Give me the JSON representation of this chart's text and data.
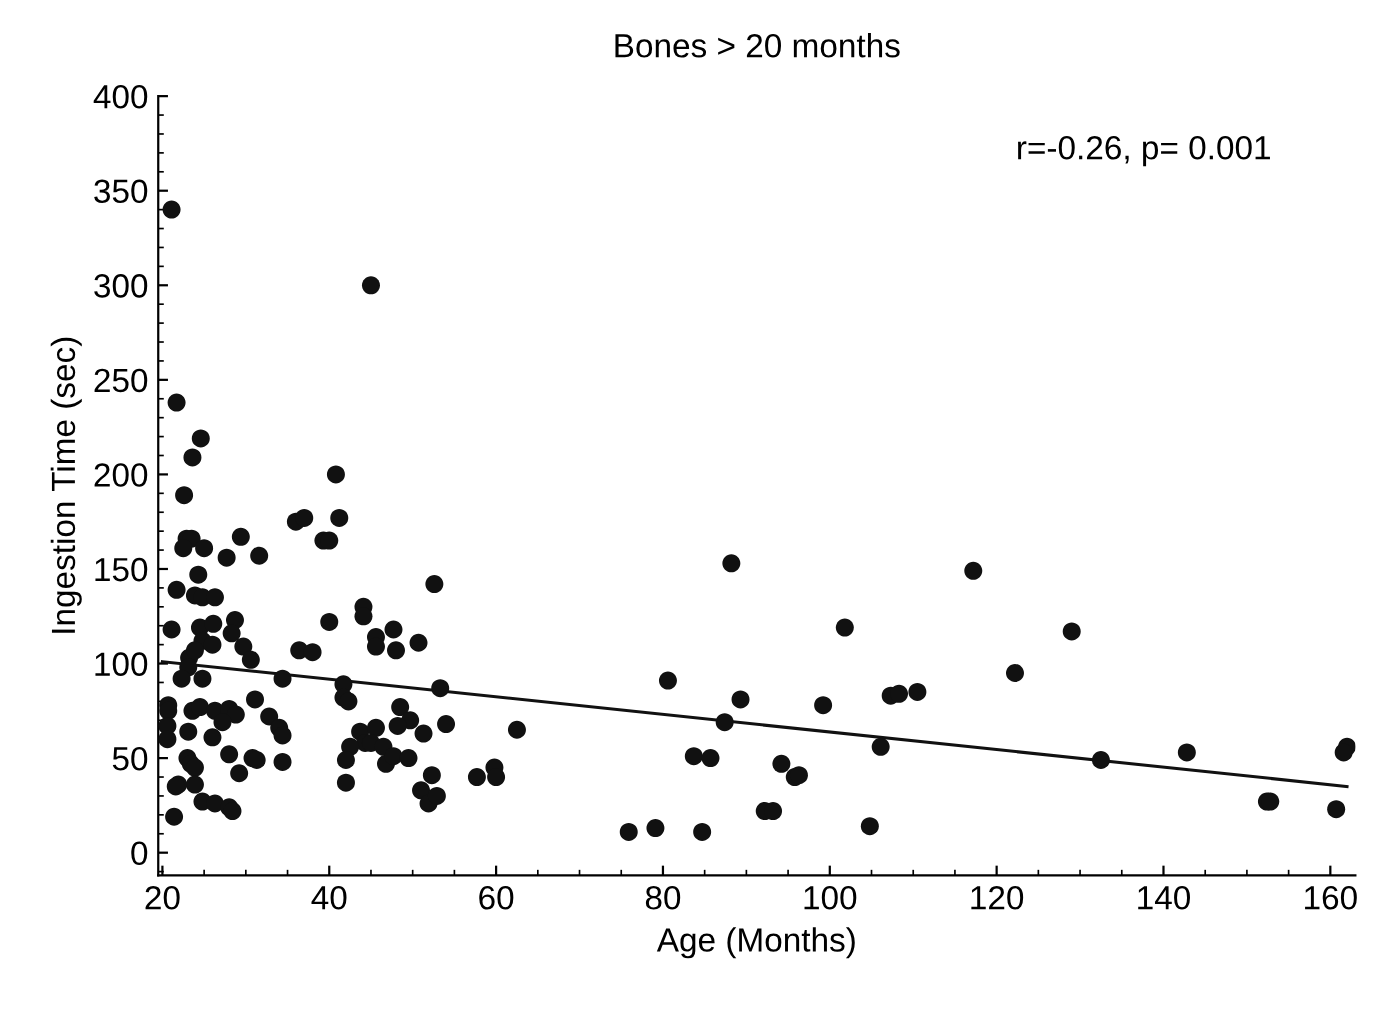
{
  "chart_data": {
    "type": "scatter",
    "title": "Bones > 20 months",
    "xlabel": "Age (Months)",
    "ylabel": "Ingestion Time (sec)",
    "annotations": [
      "r=-0.26, p= 0.001"
    ],
    "xlim": [
      19.5,
      163
    ],
    "ylim": [
      -12,
      400
    ],
    "xticks": [
      20,
      40,
      60,
      80,
      100,
      120,
      140,
      160
    ],
    "yticks": [
      0,
      50,
      100,
      150,
      200,
      250,
      300,
      350,
      400
    ],
    "marker": "circle",
    "grid": false,
    "legend": false,
    "series": [
      {
        "color": "#111111",
        "x": [
          21.1,
          45,
          21.7,
          24.6,
          23.6,
          22.6,
          40.8,
          41.2,
          36,
          37,
          39.3,
          40,
          22.9,
          23.5,
          25,
          29.4,
          27.7,
          31.6,
          22.5,
          52.6,
          21.7,
          24.3,
          23.9,
          24.8,
          26.3,
          21.1,
          28.7,
          28.3,
          24.5,
          26.1,
          24.8,
          26,
          44.1,
          44.1,
          40,
          47.7,
          45.6,
          45.6,
          48,
          50.7,
          36.4,
          38,
          29.7,
          30.6,
          23.2,
          23.9,
          23.1,
          22.3,
          24.8,
          34.4,
          41.7,
          41.7,
          42.3,
          53.3,
          31.1,
          20.7,
          20.7,
          23.6,
          24.5,
          26.3,
          28,
          28.8,
          27.2,
          32.8,
          34,
          34.4,
          20.6,
          20.6,
          23.1,
          26,
          54,
          62.5,
          43.7,
          45.6,
          44.3,
          45,
          48.5,
          49.7,
          48.2,
          51.3,
          42.5,
          42,
          46.5,
          46.8,
          47.7,
          49.5,
          28,
          30.8,
          31.3,
          34.4,
          23,
          23.4,
          23.9,
          29.2,
          21.9,
          21.6,
          23.9,
          42,
          52.3,
          57.7,
          59.8,
          60,
          51,
          51.9,
          52.9,
          24.8,
          26.3,
          28,
          28.4,
          21.4,
          88.2,
          117.2,
          101.8,
          129,
          80.6,
          122.2,
          89.3,
          87.4,
          99.2,
          107.3,
          108.3,
          110.5,
          106.1,
          83.7,
          85.7,
          94.2,
          95.8,
          96.3,
          132.5,
          142.8,
          162,
          161.6,
          92.2,
          93.2,
          152.4,
          152.8,
          160.7,
          75.9,
          79.1,
          84.7,
          104.8
        ],
        "values": [
          340,
          300,
          238,
          219,
          209,
          189,
          200,
          177,
          175,
          177,
          165,
          165,
          166,
          166,
          161,
          167,
          156,
          157,
          161,
          142,
          139,
          147,
          136,
          135,
          135,
          118,
          123,
          116,
          119,
          121,
          112,
          110,
          130,
          125,
          122,
          118,
          114,
          109,
          107,
          111,
          107,
          106,
          109,
          102,
          103,
          107,
          98,
          92,
          92,
          92,
          89,
          82,
          80,
          87,
          81,
          78,
          75,
          75,
          77,
          75,
          76,
          73,
          69,
          72,
          66,
          62,
          67,
          60,
          64,
          61,
          68,
          65,
          64,
          66,
          58,
          58,
          77,
          70,
          67,
          63,
          56,
          49,
          56,
          47,
          51,
          50,
          52,
          50,
          49,
          48,
          50,
          47,
          45,
          42,
          36,
          35,
          36,
          37,
          41,
          40,
          45,
          40,
          33,
          26,
          30,
          27,
          26,
          24,
          22,
          19,
          153,
          149,
          119,
          117,
          91,
          95,
          81,
          69,
          78,
          83,
          84,
          85,
          56,
          51,
          50,
          47,
          40,
          41,
          49,
          53,
          56,
          53,
          22,
          22,
          27,
          27,
          23,
          11,
          13,
          11,
          14
        ]
      },
      {
        "type": "line",
        "color": "#111111",
        "marker": "none",
        "x": [
          20,
          162
        ],
        "values": [
          101,
          35
        ]
      }
    ]
  }
}
